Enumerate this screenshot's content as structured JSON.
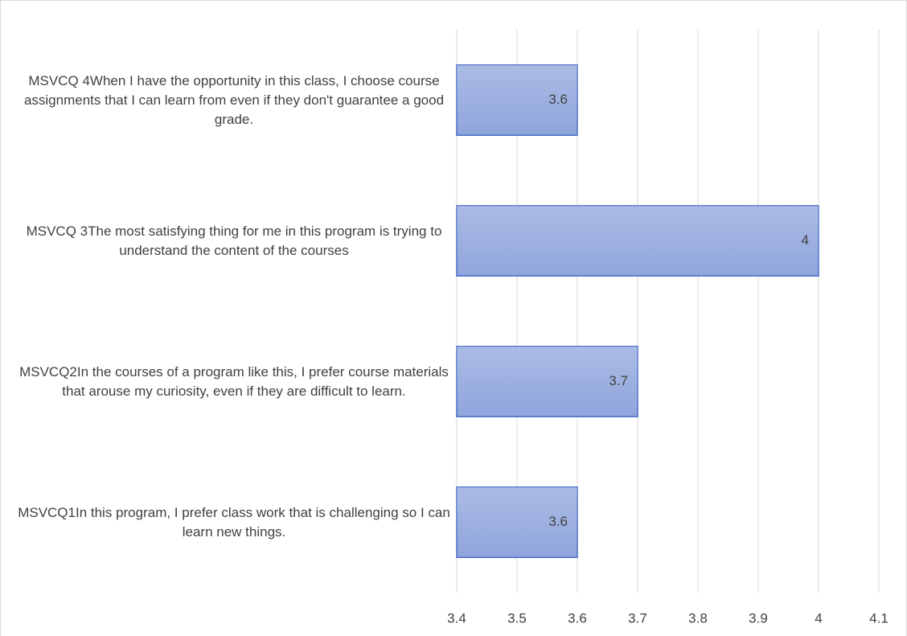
{
  "chart_data": {
    "type": "bar",
    "orientation": "horizontal",
    "categories": [
      "MSVCQ 4When I have the opportunity in this class, I choose course assignments that I can learn from even if they don't guarantee a good grade.",
      "MSVCQ 3The most satisfying thing for me in this program is trying to understand the content of the courses",
      "MSVCQ2In the courses of a program like this, I prefer course materials that arouse my curiosity, even if they are difficult to learn.",
      "MSVCQ1In this program, I prefer class work that is challenging so I can learn new things."
    ],
    "values": [
      3.6,
      4,
      3.7,
      3.6
    ],
    "color": "#8fa5dc",
    "xlim": [
      3.4,
      4.1
    ],
    "xticks": [
      3.4,
      3.5,
      3.6,
      3.7,
      3.8,
      3.9,
      4,
      4.1
    ],
    "grid": true
  }
}
